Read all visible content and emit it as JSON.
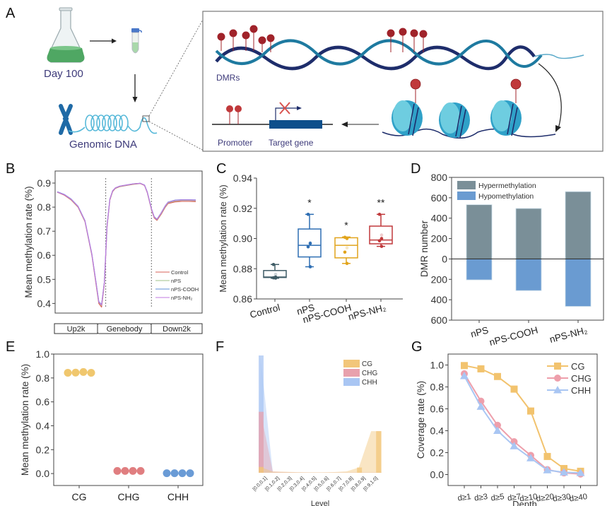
{
  "panels": {
    "A": {
      "letter": "A",
      "day_label": "Day 100",
      "genomic_label": "Genomic DNA",
      "dmrs_label": "DMRs",
      "promoter_label": "Promoter",
      "target_gene_label": "Target gene",
      "me_label": "Me"
    },
    "B": {
      "letter": "B"
    },
    "C": {
      "letter": "C"
    },
    "D": {
      "letter": "D"
    },
    "E": {
      "letter": "E"
    },
    "F": {
      "letter": "F"
    },
    "G": {
      "letter": "G"
    }
  },
  "colors": {
    "control": "#d9605a",
    "nps": "#9fc28a",
    "npscooh": "#5b8fd6",
    "npsnh2": "#c27ae0",
    "box_control": "#3f5c66",
    "box_nps": "#2e6eb3",
    "box_npscooh": "#e1a41c",
    "box_npsnh2": "#c0393b",
    "hyper": "#7a8f98",
    "hypo": "#6a9bd1",
    "cg": "#f0c76e",
    "chg": "#e07e80",
    "chh": "#6a9bd6",
    "f_cg": "#f2c67a",
    "f_chg": "#e8a1ad",
    "f_chh": "#a9c6f3",
    "g_cg": "#f2c36e",
    "g_chg": "#ee9fab",
    "g_chh": "#a9c6f3"
  },
  "chart_data": [
    {
      "panel": "B",
      "type": "line",
      "ylabel": "Mean methylation rate (%)",
      "xlabel": "",
      "ylim": [
        0.36,
        0.95
      ],
      "yticks": [
        "0.4",
        "0.5",
        "0.6",
        "0.7",
        "0.8",
        "0.9"
      ],
      "region_labels": [
        "Up2k",
        "Genebody",
        "Down2k"
      ],
      "x": [
        0,
        5,
        10,
        15,
        20,
        25,
        28,
        30,
        32,
        34,
        35,
        36,
        38,
        40,
        42,
        45,
        50,
        55,
        60,
        63,
        65,
        68,
        70,
        72,
        75,
        78,
        80,
        85,
        90,
        95,
        100
      ],
      "series": [
        {
          "name": "Control",
          "values": [
            0.862,
            0.85,
            0.83,
            0.8,
            0.74,
            0.6,
            0.48,
            0.4,
            0.385,
            0.48,
            0.6,
            0.72,
            0.83,
            0.865,
            0.878,
            0.885,
            0.89,
            0.895,
            0.898,
            0.89,
            0.86,
            0.79,
            0.755,
            0.745,
            0.77,
            0.8,
            0.815,
            0.822,
            0.824,
            0.824,
            0.823
          ]
        },
        {
          "name": "nPS",
          "values": [
            0.863,
            0.852,
            0.832,
            0.802,
            0.742,
            0.603,
            0.485,
            0.405,
            0.392,
            0.485,
            0.603,
            0.724,
            0.832,
            0.867,
            0.879,
            0.886,
            0.891,
            0.896,
            0.899,
            0.891,
            0.862,
            0.792,
            0.758,
            0.748,
            0.773,
            0.803,
            0.818,
            0.826,
            0.828,
            0.828,
            0.827
          ]
        },
        {
          "name": "nPS-COOH",
          "values": [
            0.864,
            0.853,
            0.834,
            0.804,
            0.744,
            0.605,
            0.488,
            0.408,
            0.395,
            0.488,
            0.606,
            0.726,
            0.834,
            0.868,
            0.88,
            0.887,
            0.892,
            0.897,
            0.899,
            0.892,
            0.863,
            0.794,
            0.76,
            0.75,
            0.776,
            0.806,
            0.821,
            0.829,
            0.831,
            0.831,
            0.83
          ]
        },
        {
          "name": "nPS-NH₂",
          "values": [
            0.863,
            0.852,
            0.833,
            0.803,
            0.743,
            0.604,
            0.486,
            0.406,
            0.394,
            0.486,
            0.605,
            0.725,
            0.833,
            0.868,
            0.88,
            0.887,
            0.892,
            0.897,
            0.899,
            0.891,
            0.862,
            0.793,
            0.759,
            0.749,
            0.775,
            0.805,
            0.82,
            0.828,
            0.83,
            0.83,
            0.829
          ]
        }
      ],
      "boundaries_x": [
        35,
        68
      ],
      "legend_position": "bottom-right"
    },
    {
      "panel": "C",
      "type": "box",
      "ylabel": "Mean methylation rate (%)",
      "ylim": [
        0.86,
        0.94
      ],
      "yticks": [
        "0.86",
        "0.88",
        "0.90",
        "0.92",
        "0.94"
      ],
      "categories": [
        "Control",
        "nPS",
        "nPS-COOH",
        "nPS-NH₂"
      ],
      "boxes": [
        {
          "min": 0.8737,
          "q1": 0.8742,
          "median": 0.8745,
          "q3": 0.8788,
          "max": 0.8828,
          "points": [
            0.8828,
            0.8738,
            0.874,
            0.8745
          ],
          "mean": 0.8763,
          "sig": ""
        },
        {
          "min": 0.8813,
          "q1": 0.8878,
          "median": 0.8955,
          "q3": 0.9063,
          "max": 0.916,
          "points": [
            0.916,
            0.8968,
            0.8945,
            0.8813
          ],
          "mean": 0.8972,
          "sig": "*"
        },
        {
          "min": 0.8835,
          "q1": 0.8872,
          "median": 0.8955,
          "q3": 0.9005,
          "max": 0.901,
          "points": [
            0.9008,
            0.9,
            0.891,
            0.8835
          ],
          "mean": 0.8938,
          "sig": "*"
        },
        {
          "min": 0.8948,
          "q1": 0.8965,
          "median": 0.899,
          "q3": 0.9082,
          "max": 0.916,
          "points": [
            0.916,
            0.9,
            0.8985,
            0.8948
          ],
          "mean": 0.9023,
          "sig": "**"
        }
      ]
    },
    {
      "panel": "D",
      "type": "bar",
      "ylabel": "DMR number",
      "ylim": [
        -600,
        800
      ],
      "yticks": [
        "800",
        "600",
        "400",
        "200",
        "0",
        "200",
        "400",
        "600"
      ],
      "categories": [
        "nPS",
        "nPS-COOH",
        "nPS-NH₂"
      ],
      "series": [
        {
          "name": "Hypermethylation",
          "values": [
            532,
            495,
            660
          ]
        },
        {
          "name": "Hypomethylation",
          "values": [
            -205,
            -310,
            -465
          ]
        }
      ],
      "legend_position": "top-left"
    },
    {
      "panel": "E",
      "type": "scatter",
      "ylabel": "Mean methylation rate (%)",
      "ylim": [
        -0.1,
        1.0
      ],
      "yticks": [
        "0.0",
        "0.2",
        "0.4",
        "0.6",
        "0.8",
        "1.0"
      ],
      "categories": [
        "CG",
        "CHG",
        "CHH"
      ],
      "series": [
        {
          "name": "CG",
          "values": [
            0.843,
            0.845,
            0.85,
            0.843
          ]
        },
        {
          "name": "CHG",
          "values": [
            0.022,
            0.022,
            0.022,
            0.022
          ]
        },
        {
          "name": "CHH",
          "values": [
            0.003,
            0.003,
            0.003,
            0.003
          ]
        }
      ]
    },
    {
      "panel": "F",
      "type": "area",
      "xlabel": "Level",
      "ylabel": "",
      "categories": [
        "[0.0,0.1]",
        "[0.1,0.2]",
        "[0.2,0.3]",
        "[0.3,0.4]",
        "[0.4,0.5]",
        "[0.5,0.6]",
        "[0.6,0.7]",
        "[0.7,0.8]",
        "[0.8,0.9]",
        "[0.9,1.0]"
      ],
      "ylim": [
        0,
        1.0
      ],
      "series": [
        {
          "name": "CG",
          "values": [
            0.05,
            0.01,
            0.008,
            0.005,
            0.004,
            0.004,
            0.006,
            0.012,
            0.045,
            0.355
          ]
        },
        {
          "name": "CHG",
          "values": [
            0.52,
            0.012,
            0.007,
            0.004,
            0.003,
            0.003,
            0.003,
            0.003,
            0.003,
            0.003
          ]
        },
        {
          "name": "CHH",
          "values": [
            1.0,
            0.005,
            0.002,
            0.001,
            0.001,
            0.001,
            0.001,
            0.001,
            0.001,
            0.001
          ]
        }
      ],
      "legend_position": "top-right"
    },
    {
      "panel": "G",
      "type": "line",
      "xlabel": "Depth",
      "ylabel": "Coverage rate (%)",
      "ylim": [
        -0.1,
        1.1
      ],
      "yticks": [
        "0.0",
        "0.2",
        "0.4",
        "0.6",
        "0.8",
        "1.0"
      ],
      "categories": [
        "d≥1",
        "d≥3",
        "d≥5",
        "d≥7",
        "d≥10",
        "d≥20",
        "d≥30",
        "d≥40"
      ],
      "series": [
        {
          "name": "CG",
          "marker": "square",
          "values": [
            0.995,
            0.965,
            0.895,
            0.78,
            0.58,
            0.165,
            0.055,
            0.03
          ]
        },
        {
          "name": "CHG",
          "marker": "circle",
          "values": [
            0.92,
            0.67,
            0.45,
            0.3,
            0.175,
            0.045,
            0.015,
            0.005
          ]
        },
        {
          "name": "CHH",
          "marker": "triangle",
          "values": [
            0.9,
            0.62,
            0.4,
            0.26,
            0.15,
            0.04,
            0.02,
            0.015
          ]
        }
      ],
      "legend_position": "top-right"
    }
  ]
}
